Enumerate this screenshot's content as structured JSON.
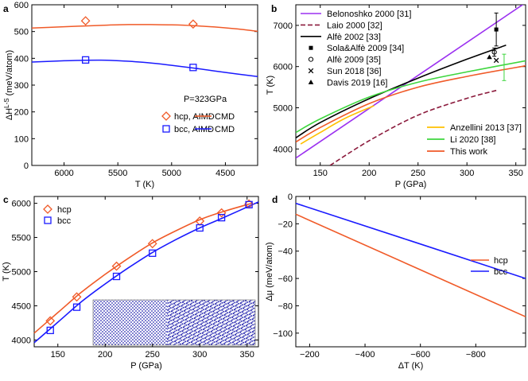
{
  "chart_data": [
    {
      "id": "a",
      "type": "line",
      "panel_label": "a",
      "xlabel": "T (K)",
      "ylabel": "ΔH",
      "ylabel_sup": "L-S",
      "ylabel_unit": " (meV/atom)",
      "xlim": [
        6300,
        4200
      ],
      "ylim": [
        0,
        600
      ],
      "xticks": [
        6000,
        5500,
        5000,
        4500
      ],
      "yticks": [
        0,
        100,
        200,
        300,
        400,
        500,
        600
      ],
      "annotation": "P=323GPa",
      "colors": {
        "hcp": "#f05a28",
        "bcc": "#1a1aff"
      },
      "series": [
        {
          "name": "hcp, CMD",
          "kind": "line",
          "color": "#f05a28",
          "x": [
            6300,
            6000,
            5800,
            5600,
            5400,
            5200,
            5000,
            4800,
            4600,
            4400,
            4200
          ],
          "y": [
            513,
            518,
            521,
            524,
            526,
            526,
            525,
            522,
            517,
            510,
            501
          ]
        },
        {
          "name": "bcc, CMD",
          "kind": "line",
          "color": "#1a1aff",
          "x": [
            6300,
            6000,
            5800,
            5600,
            5400,
            5200,
            5000,
            4800,
            4600,
            4400,
            4200
          ],
          "y": [
            386,
            391,
            393,
            393,
            389,
            383,
            374,
            364,
            353,
            342,
            332
          ]
        },
        {
          "name": "hcp, AIMD",
          "kind": "marker",
          "marker": "diamond",
          "color": "#f05a28",
          "x": [
            5800,
            4800
          ],
          "y": [
            540,
            528
          ]
        },
        {
          "name": "bcc, AIMD",
          "kind": "marker",
          "marker": "square",
          "color": "#1a1aff",
          "x": [
            5800,
            4800
          ],
          "y": [
            394,
            366
          ]
        }
      ],
      "legend": {
        "title": "P=323GPa",
        "entries": [
          "hcp, AIMD",
          "CMD",
          "bcc, AIMD",
          "CMD"
        ]
      }
    },
    {
      "id": "b",
      "type": "line",
      "panel_label": "b",
      "xlabel": "P (GPa)",
      "ylabel": "T (K)",
      "xlim": [
        125,
        360
      ],
      "ylim": [
        3600,
        7500
      ],
      "xticks": [
        150,
        200,
        250,
        300,
        350
      ],
      "yticks": [
        4000,
        5000,
        6000,
        7000
      ],
      "series": [
        {
          "name": "Belonoshko 2000 [31]",
          "color": "#9b30f0",
          "style": "solid",
          "x": [
            125,
            360
          ],
          "y": [
            3780,
            7550
          ]
        },
        {
          "name": "Laio 2000 [32]",
          "color": "#8b1a3c",
          "style": "dashed",
          "x": [
            160,
            200,
            250,
            300,
            330
          ],
          "y": [
            3600,
            4200,
            4820,
            5230,
            5420
          ]
        },
        {
          "name": "Alfè 2002 [33]",
          "color": "#000000",
          "style": "solid",
          "x": [
            125,
            150,
            200,
            250,
            300,
            340
          ],
          "y": [
            4270,
            4640,
            5220,
            5720,
            6180,
            6520
          ]
        },
        {
          "name": "Anzellini 2013 [37]",
          "color": "#ffc000",
          "style": "solid",
          "x": [
            130,
            150,
            175,
            205
          ],
          "y": [
            4120,
            4400,
            4740,
            5050
          ]
        },
        {
          "name": "Li 2020 [38]",
          "color": "#3ed63e",
          "style": "solid",
          "x": [
            125,
            150,
            200,
            250,
            300,
            360
          ],
          "y": [
            4400,
            4730,
            5260,
            5620,
            5870,
            6140
          ]
        },
        {
          "name": "This work",
          "color": "#f05a28",
          "style": "solid",
          "x": [
            125,
            150,
            200,
            250,
            300,
            360
          ],
          "y": [
            4170,
            4520,
            5100,
            5500,
            5760,
            6020
          ]
        }
      ],
      "points": [
        {
          "name": "Sola&Alfè 2009 [34]",
          "marker": "filled-square",
          "x": 330,
          "y": 6900,
          "err": 400,
          "color": "#000000"
        },
        {
          "name": "Alfè 2009 [35]",
          "marker": "open-circle",
          "x": 328,
          "y": 6350,
          "err": 100,
          "color": "#000000"
        },
        {
          "name": "Sun 2018 [36]",
          "marker": "cross",
          "x": 330,
          "y": 6150,
          "err": 0,
          "color": "#000000"
        },
        {
          "name": "Davis 2019 [16]",
          "marker": "filled-triangle",
          "x": 323,
          "y": 6230,
          "err": 0,
          "color": "#000000"
        },
        {
          "name": "Li 2020 [38]",
          "marker": "errorbar",
          "x": 338,
          "y": 5980,
          "err": 320,
          "color": "#3ed63e"
        }
      ],
      "legend_top": [
        "Belonoshko 2000 [31]",
        "Laio 2000 [32]",
        "Alfè 2002 [33]",
        "Sola&Alfè 2009 [34]",
        "Alfè 2009 [35]",
        "Sun 2018 [36]",
        "Davis 2019 [16]"
      ],
      "legend_bottom": [
        "Anzellini 2013 [37]",
        "Li 2020 [38]",
        "This work"
      ]
    },
    {
      "id": "c",
      "type": "line",
      "panel_label": "c",
      "xlabel": "P (GPa)",
      "ylabel": "T (K)",
      "xlim": [
        125,
        362
      ],
      "ylim": [
        3900,
        6100
      ],
      "xticks": [
        150,
        200,
        250,
        300,
        350
      ],
      "yticks": [
        4000,
        4500,
        5000,
        5500,
        6000
      ],
      "series": [
        {
          "name": "hcp",
          "color": "#f05a28",
          "kind": "line",
          "x": [
            125,
            150,
            175,
            200,
            225,
            250,
            275,
            300,
            325,
            355
          ],
          "y": [
            4100,
            4400,
            4700,
            4960,
            5200,
            5420,
            5600,
            5760,
            5880,
            6000
          ]
        },
        {
          "name": "bcc",
          "color": "#1a1aff",
          "kind": "line",
          "x": [
            125,
            150,
            175,
            200,
            225,
            250,
            275,
            300,
            325,
            362
          ],
          "y": [
            3960,
            4260,
            4560,
            4820,
            5060,
            5280,
            5470,
            5640,
            5790,
            6020
          ]
        },
        {
          "name": "hcp",
          "kind": "marker",
          "marker": "diamond",
          "color": "#f05a28",
          "x": [
            142,
            170,
            212,
            250,
            300,
            323,
            352
          ],
          "y": [
            4280,
            4630,
            5080,
            5410,
            5740,
            5860,
            5990
          ]
        },
        {
          "name": "bcc",
          "kind": "marker",
          "marker": "square",
          "color": "#1a1aff",
          "x": [
            142,
            170,
            212,
            250,
            300,
            323,
            352
          ],
          "y": [
            4140,
            4480,
            4930,
            5270,
            5640,
            5790,
            5980
          ]
        }
      ],
      "legend": [
        "hcp",
        "bcc"
      ],
      "inset": "solid-liquid coexistence snapshot (bcc atoms)"
    },
    {
      "id": "d",
      "type": "line",
      "panel_label": "d",
      "xlabel": "ΔT (K)",
      "ylabel": "Δμ (meV/atom)",
      "xlim": [
        -150,
        -980
      ],
      "ylim": [
        -110,
        0
      ],
      "xticks": [
        -200,
        -400,
        -600,
        -800
      ],
      "yticks": [
        0,
        -20,
        -40,
        -60,
        -80,
        -100
      ],
      "series": [
        {
          "name": "hcp",
          "color": "#f05a28",
          "x": [
            -150,
            -980
          ],
          "y": [
            -13,
            -88
          ]
        },
        {
          "name": "bcc",
          "color": "#1a1aff",
          "x": [
            -150,
            -980
          ],
          "y": [
            -5,
            -60
          ]
        }
      ],
      "legend": [
        "hcp",
        "bcc"
      ]
    }
  ]
}
